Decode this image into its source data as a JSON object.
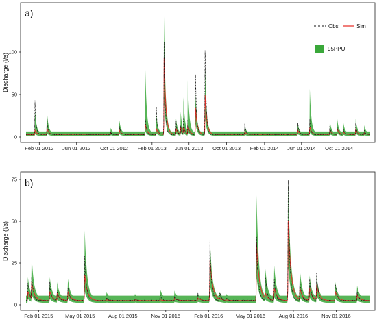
{
  "chart_data": [
    {
      "type": "line",
      "panel_label": "a)",
      "ylabel": "Discharge (l/s)",
      "ylim": [
        0,
        150
      ],
      "yticks": [
        0,
        50,
        100
      ],
      "xlim": [
        "2011-12-20",
        "2015-01-10"
      ],
      "xticks": [
        {
          "date": "2012-02-01",
          "label": "Feb 01 2012"
        },
        {
          "date": "2012-06-01",
          "label": "Jun 01 2012"
        },
        {
          "date": "2012-10-01",
          "label": "Oct 01 2012"
        },
        {
          "date": "2013-02-01",
          "label": "Feb 01 2013"
        },
        {
          "date": "2013-06-01",
          "label": "Jun 01 2013"
        },
        {
          "date": "2013-10-01",
          "label": "Oct 01 2013"
        },
        {
          "date": "2014-02-01",
          "label": "Feb 01 2014"
        },
        {
          "date": "2014-06-01",
          "label": "Jun 01 2014"
        },
        {
          "date": "2014-10-01",
          "label": "Oct 01 2014"
        }
      ],
      "legend": {
        "position": "top-right",
        "obs": "Obs",
        "sim": "Sim",
        "band": "95PPU"
      },
      "colors": {
        "band": "#3aa83a",
        "sim": "#e8302a",
        "obs": "#111111"
      },
      "baseline": 3,
      "events": [
        {
          "date": "2012-01-18",
          "obs": 42,
          "sim": 8,
          "upper": 30
        },
        {
          "date": "2012-02-26",
          "obs": 22,
          "sim": 10,
          "upper": 28
        },
        {
          "date": "2012-09-20",
          "obs": 6,
          "sim": 5,
          "upper": 9
        },
        {
          "date": "2012-10-18",
          "obs": 13,
          "sim": 8,
          "upper": 18
        },
        {
          "date": "2013-01-10",
          "obs": 22,
          "sim": 15,
          "upper": 80
        },
        {
          "date": "2013-02-15",
          "obs": 32,
          "sim": 10,
          "upper": 25
        },
        {
          "date": "2013-03-12",
          "obs": 110,
          "sim": 93,
          "upper": 140
        },
        {
          "date": "2013-04-20",
          "obs": 17,
          "sim": 10,
          "upper": 20
        },
        {
          "date": "2013-05-05",
          "obs": 12,
          "sim": 12,
          "upper": 28
        },
        {
          "date": "2013-05-14",
          "obs": 24,
          "sim": 12,
          "upper": 45
        },
        {
          "date": "2013-05-28",
          "obs": 20,
          "sim": 15,
          "upper": 65
        },
        {
          "date": "2013-06-22",
          "obs": 73,
          "sim": 35,
          "upper": 50
        },
        {
          "date": "2013-07-23",
          "obs": 115,
          "sim": 50,
          "upper": 80
        },
        {
          "date": "2013-11-29",
          "obs": 17,
          "sim": 6,
          "upper": 12
        },
        {
          "date": "2014-05-20",
          "obs": 18,
          "sim": 8,
          "upper": 14
        },
        {
          "date": "2014-06-28",
          "obs": 20,
          "sim": 12,
          "upper": 55
        },
        {
          "date": "2014-09-01",
          "obs": 15,
          "sim": 8,
          "upper": 18
        },
        {
          "date": "2014-09-25",
          "obs": 12,
          "sim": 10,
          "upper": 20
        },
        {
          "date": "2014-10-15",
          "obs": 10,
          "sim": 6,
          "upper": 15
        },
        {
          "date": "2014-11-24",
          "obs": 15,
          "sim": 10,
          "upper": 20
        },
        {
          "date": "2014-12-22",
          "obs": 8,
          "sim": 5,
          "upper": 12
        }
      ]
    },
    {
      "type": "line",
      "panel_label": "b)",
      "ylabel": "Discharge (l/s)",
      "ylim": [
        0,
        75
      ],
      "yticks": [
        0,
        25,
        50,
        75
      ],
      "xlim": [
        "2015-01-05",
        "2017-01-13"
      ],
      "xticks": [
        {
          "date": "2015-02-01",
          "label": "Feb 01 2015"
        },
        {
          "date": "2015-05-01",
          "label": "May 01 2015"
        },
        {
          "date": "2015-08-01",
          "label": "Aug 01 2015"
        },
        {
          "date": "2015-11-01",
          "label": "Nov 01 2015"
        },
        {
          "date": "2016-02-01",
          "label": "Feb 01 2016"
        },
        {
          "date": "2016-05-01",
          "label": "May 01 2016"
        },
        {
          "date": "2016-08-01",
          "label": "Aug 01 2016"
        },
        {
          "date": "2016-11-01",
          "label": "Nov 01 2016"
        }
      ],
      "colors": {
        "band": "#3aa83a",
        "sim": "#e8302a",
        "obs": "#111111"
      },
      "baseline": 2.5,
      "events": [
        {
          "date": "2015-01-09",
          "obs": 14,
          "sim": 8,
          "upper": 15
        },
        {
          "date": "2015-01-17",
          "obs": 18,
          "sim": 14,
          "upper": 28
        },
        {
          "date": "2015-02-25",
          "obs": 13,
          "sim": 8,
          "upper": 15
        },
        {
          "date": "2015-03-13",
          "obs": 8,
          "sim": 7,
          "upper": 12
        },
        {
          "date": "2015-04-05",
          "obs": 11,
          "sim": 8,
          "upper": 14
        },
        {
          "date": "2015-05-11",
          "obs": 30,
          "sim": 18,
          "upper": 43
        },
        {
          "date": "2015-06-27",
          "obs": 4,
          "sim": 3,
          "upper": 6
        },
        {
          "date": "2015-08-27",
          "obs": 3.5,
          "sim": 3,
          "upper": 5
        },
        {
          "date": "2015-10-20",
          "obs": 6,
          "sim": 3,
          "upper": 8
        },
        {
          "date": "2015-11-20",
          "obs": 5,
          "sim": 4,
          "upper": 7
        },
        {
          "date": "2016-01-09",
          "obs": 7,
          "sim": 4,
          "upper": 5
        },
        {
          "date": "2016-02-04",
          "obs": 36,
          "sim": 27,
          "upper": 38
        },
        {
          "date": "2016-02-25",
          "obs": 7,
          "sim": 4,
          "upper": 6
        },
        {
          "date": "2016-03-10",
          "obs": 4,
          "sim": 3,
          "upper": 5
        },
        {
          "date": "2016-05-14",
          "obs": 40,
          "sim": 37,
          "upper": 64
        },
        {
          "date": "2016-06-02",
          "obs": 18,
          "sim": 7,
          "upper": 20
        },
        {
          "date": "2016-06-21",
          "obs": 15,
          "sim": 10,
          "upper": 22
        },
        {
          "date": "2016-07-21",
          "obs": 72,
          "sim": 50,
          "upper": 72
        },
        {
          "date": "2016-08-15",
          "obs": 15,
          "sim": 10,
          "upper": 20
        },
        {
          "date": "2016-09-05",
          "obs": 15,
          "sim": 10,
          "upper": 16
        },
        {
          "date": "2016-09-20",
          "obs": 18,
          "sim": 12,
          "upper": 16
        },
        {
          "date": "2016-10-30",
          "obs": 13,
          "sim": 8,
          "upper": 12
        },
        {
          "date": "2016-12-16",
          "obs": 8,
          "sim": 6,
          "upper": 10
        }
      ]
    }
  ]
}
